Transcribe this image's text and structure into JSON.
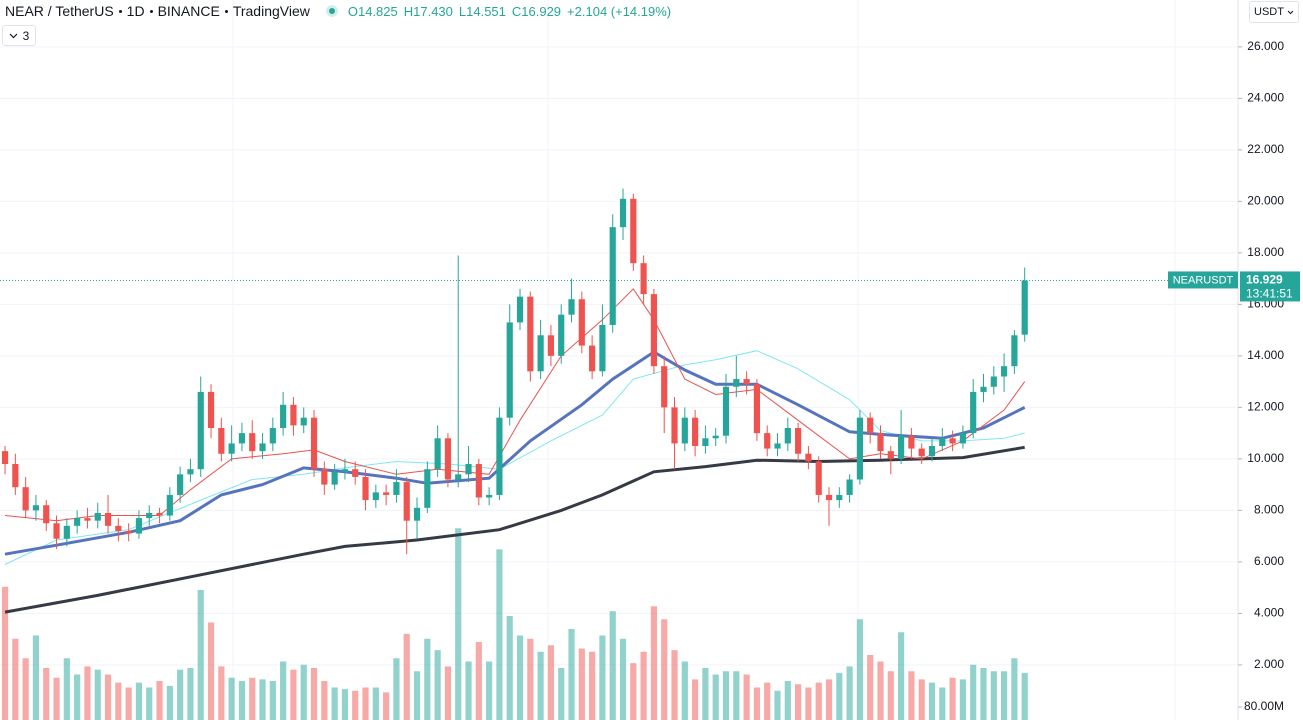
{
  "chart_data": {
    "type": "candlestick",
    "header": {
      "symbol": "NEAR / TetherUS",
      "interval": "1D",
      "exchange": "BINANCE",
      "source": "TradingView",
      "ohlc": [
        "O14.825",
        "H17.430",
        "L14.551",
        "C16.929"
      ],
      "change": "+2.104 (+14.19%)"
    },
    "indicator_count": 3,
    "currency": "USDT",
    "last_price": {
      "value": 16.929,
      "label": "16.929",
      "countdown": "13:41:51",
      "color": "#26a69a"
    },
    "xlim": [
      -0.49,
      119.71
    ],
    "ylim": [
      -0.14,
      27.82
    ],
    "yticks": [
      {
        "value": 2,
        "label": "2.000"
      },
      {
        "value": 4,
        "label": "4.000"
      },
      {
        "value": 6,
        "label": "6.000"
      },
      {
        "value": 8,
        "label": "8.000"
      },
      {
        "value": 10,
        "label": "10.000"
      },
      {
        "value": 12,
        "label": "12.000"
      },
      {
        "value": 14,
        "label": "14.000"
      },
      {
        "value": 16,
        "label": "16.000"
      },
      {
        "value": 18,
        "label": "18.000"
      },
      {
        "value": 20,
        "label": "20.000"
      },
      {
        "value": 22,
        "label": "22.000"
      },
      {
        "value": 24,
        "label": "24.000"
      },
      {
        "value": 26,
        "label": "26.000"
      }
    ],
    "volume_ylim": [
      0,
      1200
    ],
    "volume_ticks": [
      {
        "value": 80,
        "label": "80.00M"
      }
    ],
    "grid": true,
    "x": [
      0,
      1,
      2,
      3,
      4,
      5,
      6,
      7,
      8,
      9,
      10,
      11,
      12,
      13,
      14,
      15,
      16,
      17,
      18,
      19,
      20,
      21,
      22,
      23,
      24,
      25,
      26,
      27,
      28,
      29,
      30,
      31,
      32,
      33,
      34,
      35,
      36,
      37,
      38,
      39,
      40,
      41,
      42,
      43,
      44,
      45,
      46,
      47,
      48,
      49,
      50,
      51,
      52,
      53,
      54,
      55,
      56,
      57,
      58,
      59,
      60,
      61,
      62,
      63,
      64,
      65,
      66,
      67,
      68,
      69,
      70,
      71,
      72,
      73,
      74,
      75,
      76,
      77,
      78,
      79,
      80,
      81,
      82,
      83,
      84,
      85,
      86,
      87,
      88,
      89,
      90,
      91,
      92,
      93,
      94,
      95,
      96,
      97,
      98,
      99
    ],
    "candles": {
      "name": "NEARUSDT",
      "up_color": "#26a69a",
      "down_color": "#ef5350",
      "open": [
        10.3,
        9.8,
        8.9,
        8.0,
        8.2,
        7.5,
        6.9,
        7.4,
        7.7,
        7.6,
        7.9,
        7.4,
        7.2,
        7.1,
        7.7,
        7.9,
        7.8,
        8.6,
        9.4,
        9.6,
        12.6,
        11.2,
        10.2,
        10.6,
        11.0,
        10.3,
        10.6,
        11.2,
        12.1,
        11.3,
        11.6,
        9.6,
        9.0,
        9.5,
        9.6,
        9.3,
        8.4,
        8.7,
        8.6,
        9.1,
        7.6,
        8.1,
        9.6,
        10.8,
        9.2,
        9.4,
        9.8,
        8.5,
        8.6,
        11.6,
        15.3,
        16.3,
        13.4,
        14.8,
        14.0,
        15.6,
        16.2,
        14.4,
        13.4,
        15.2,
        19.0,
        20.1,
        17.6,
        16.4,
        13.6,
        12.0,
        10.6,
        11.6,
        10.5,
        10.8,
        10.9,
        12.8,
        13.1,
        12.9,
        11.0,
        10.4,
        10.6,
        11.2,
        10.2,
        9.9,
        8.6,
        8.4,
        8.6,
        9.2,
        11.6,
        11.0,
        10.3,
        10.0,
        10.9,
        10.4,
        10.1,
        10.5,
        10.8,
        10.6,
        11.0,
        12.6,
        12.8,
        13.2,
        13.6,
        14.825
      ],
      "high": [
        10.5,
        10.2,
        9.3,
        8.6,
        8.4,
        7.8,
        7.7,
        8.0,
        8.1,
        8.3,
        8.6,
        7.7,
        7.5,
        8.0,
        8.2,
        8.1,
        8.9,
        9.7,
        10.0,
        13.2,
        12.9,
        11.6,
        11.3,
        11.4,
        11.5,
        11.0,
        11.6,
        12.6,
        12.4,
        12.0,
        11.9,
        9.9,
        9.8,
        10.0,
        9.9,
        9.6,
        9.0,
        9.0,
        9.6,
        9.3,
        8.5,
        9.9,
        11.3,
        11.0,
        17.9,
        10.5,
        10.0,
        8.9,
        12.0,
        16.0,
        16.6,
        16.5,
        15.4,
        15.2,
        16.0,
        17.0,
        16.5,
        14.8,
        16.0,
        19.5,
        20.5,
        20.3,
        17.9,
        16.6,
        14.0,
        12.4,
        12.0,
        11.9,
        11.3,
        11.2,
        13.3,
        14.0,
        13.4,
        13.1,
        11.3,
        11.0,
        11.6,
        11.4,
        10.5,
        10.1,
        8.9,
        8.9,
        9.4,
        11.9,
        11.8,
        11.3,
        10.5,
        11.9,
        11.2,
        10.6,
        10.8,
        11.2,
        11.1,
        11.3,
        13.1,
        13.3,
        13.6,
        14.1,
        15.0,
        17.43
      ],
      "low": [
        9.4,
        8.6,
        7.7,
        7.6,
        7.2,
        6.5,
        6.6,
        7.1,
        7.3,
        7.3,
        7.1,
        6.8,
        6.8,
        6.9,
        7.4,
        7.5,
        7.6,
        8.3,
        9.1,
        9.3,
        10.8,
        9.9,
        9.9,
        10.3,
        10.0,
        10.0,
        10.3,
        10.9,
        10.9,
        11.0,
        9.3,
        8.6,
        8.8,
        9.2,
        9.0,
        8.0,
        8.1,
        8.2,
        8.3,
        6.3,
        6.9,
        7.9,
        9.3,
        8.9,
        8.9,
        9.1,
        8.2,
        8.2,
        8.4,
        11.3,
        15.0,
        13.0,
        13.1,
        13.6,
        13.7,
        15.3,
        14.1,
        13.1,
        13.2,
        14.9,
        18.5,
        17.3,
        16.0,
        13.3,
        11.0,
        9.6,
        10.3,
        10.1,
        10.2,
        10.5,
        10.6,
        12.4,
        12.5,
        10.7,
        10.1,
        10.1,
        10.3,
        9.9,
        9.6,
        8.3,
        7.4,
        8.1,
        8.3,
        9.0,
        10.6,
        10.0,
        9.4,
        9.8,
        10.0,
        9.8,
        9.9,
        10.3,
        10.3,
        10.4,
        10.8,
        12.2,
        12.5,
        12.6,
        13.3,
        14.551
      ],
      "close": [
        9.8,
        8.9,
        8.0,
        8.2,
        7.5,
        6.9,
        7.4,
        7.7,
        7.6,
        7.9,
        7.4,
        7.2,
        7.1,
        7.7,
        7.9,
        7.8,
        8.6,
        9.4,
        9.6,
        12.6,
        11.2,
        10.2,
        10.6,
        11.0,
        10.3,
        10.6,
        11.2,
        12.1,
        11.3,
        11.6,
        9.6,
        9.0,
        9.5,
        9.6,
        9.3,
        8.4,
        8.7,
        8.6,
        9.1,
        7.6,
        8.1,
        9.6,
        10.8,
        9.2,
        9.4,
        9.8,
        8.5,
        8.6,
        11.6,
        15.3,
        16.3,
        13.4,
        14.8,
        14.0,
        15.6,
        16.2,
        14.4,
        13.4,
        15.2,
        19.0,
        20.1,
        17.6,
        16.4,
        13.6,
        12.0,
        10.6,
        11.6,
        10.5,
        10.8,
        10.9,
        12.8,
        13.1,
        12.9,
        11.0,
        10.4,
        10.6,
        11.2,
        10.2,
        9.9,
        8.6,
        8.4,
        8.6,
        9.2,
        11.6,
        11.0,
        10.3,
        10.0,
        10.9,
        10.4,
        10.1,
        10.5,
        10.8,
        10.6,
        11.0,
        12.6,
        12.8,
        13.2,
        13.6,
        14.8,
        16.929
      ],
      "volume": [
        820,
        500,
        380,
        520,
        320,
        260,
        380,
        280,
        330,
        310,
        280,
        230,
        200,
        230,
        200,
        240,
        210,
        310,
        320,
        800,
        600,
        330,
        260,
        240,
        260,
        250,
        240,
        360,
        310,
        340,
        320,
        240,
        200,
        190,
        180,
        200,
        200,
        170,
        380,
        530,
        300,
        500,
        430,
        330,
        1180,
        360,
        480,
        360,
        1050,
        640,
        520,
        500,
        420,
        460,
        320,
        560,
        440,
        420,
        520,
        670,
        500,
        350,
        420,
        700,
        620,
        430,
        360,
        250,
        320,
        280,
        300,
        300,
        280,
        200,
        230,
        180,
        240,
        220,
        200,
        230,
        250,
        290,
        330,
        620,
        400,
        360,
        300,
        540,
        300,
        250,
        230,
        200,
        260,
        250,
        340,
        320,
        300,
        300,
        380,
        290
      ]
    },
    "indicators": [
      {
        "color": "#363a45",
        "width": 3,
        "x": [
          0,
          9,
          19,
          29,
          33,
          40,
          48,
          54,
          58,
          63,
          68,
          73,
          79,
          85,
          93,
          99
        ],
        "values": [
          4.05,
          4.7,
          5.5,
          6.3,
          6.6,
          6.85,
          7.25,
          8.0,
          8.6,
          9.5,
          9.7,
          9.95,
          9.9,
          9.95,
          10.05,
          10.45
        ]
      },
      {
        "color": "#80e6f2",
        "width": 1,
        "x": [
          0,
          5,
          12,
          19,
          24,
          29,
          33,
          38,
          43,
          48,
          53,
          58,
          61,
          66,
          69,
          73,
          77,
          82,
          85,
          89,
          93,
          97,
          99
        ],
        "values": [
          5.9,
          6.85,
          7.25,
          8.4,
          9.2,
          9.4,
          9.65,
          9.9,
          9.8,
          9.6,
          10.7,
          11.7,
          13.1,
          13.65,
          13.85,
          14.2,
          13.5,
          12.3,
          11.1,
          10.7,
          10.7,
          10.8,
          11.0
        ]
      },
      {
        "color": "#5673bd",
        "width": 3,
        "x": [
          0,
          5,
          12,
          17,
          21,
          25,
          29,
          33,
          38,
          41,
          47,
          51,
          56,
          59,
          63,
          66,
          69,
          73,
          77,
          82,
          85,
          91,
          95,
          99
        ],
        "values": [
          6.3,
          6.65,
          7.15,
          7.6,
          8.6,
          9.0,
          9.65,
          9.5,
          9.25,
          9.05,
          9.25,
          10.7,
          12.1,
          13.1,
          14.15,
          13.45,
          12.9,
          12.9,
          12.1,
          11.05,
          10.95,
          10.8,
          11.2,
          12.0
        ]
      },
      {
        "color": "#e8534f",
        "width": 1,
        "x": [
          0,
          5,
          9,
          15,
          18,
          22,
          27,
          30,
          33,
          38,
          42,
          47,
          50,
          54,
          58,
          61,
          63,
          66,
          69,
          73,
          77,
          82,
          85,
          89,
          93,
          97,
          99
        ],
        "values": [
          7.8,
          7.6,
          7.8,
          7.8,
          8.8,
          10.0,
          10.2,
          10.35,
          9.9,
          9.4,
          9.6,
          9.4,
          11.5,
          14.0,
          15.4,
          16.6,
          15.4,
          13.1,
          12.5,
          12.7,
          11.5,
          10.0,
          10.2,
          10.0,
          10.7,
          11.9,
          13.0
        ]
      }
    ]
  }
}
